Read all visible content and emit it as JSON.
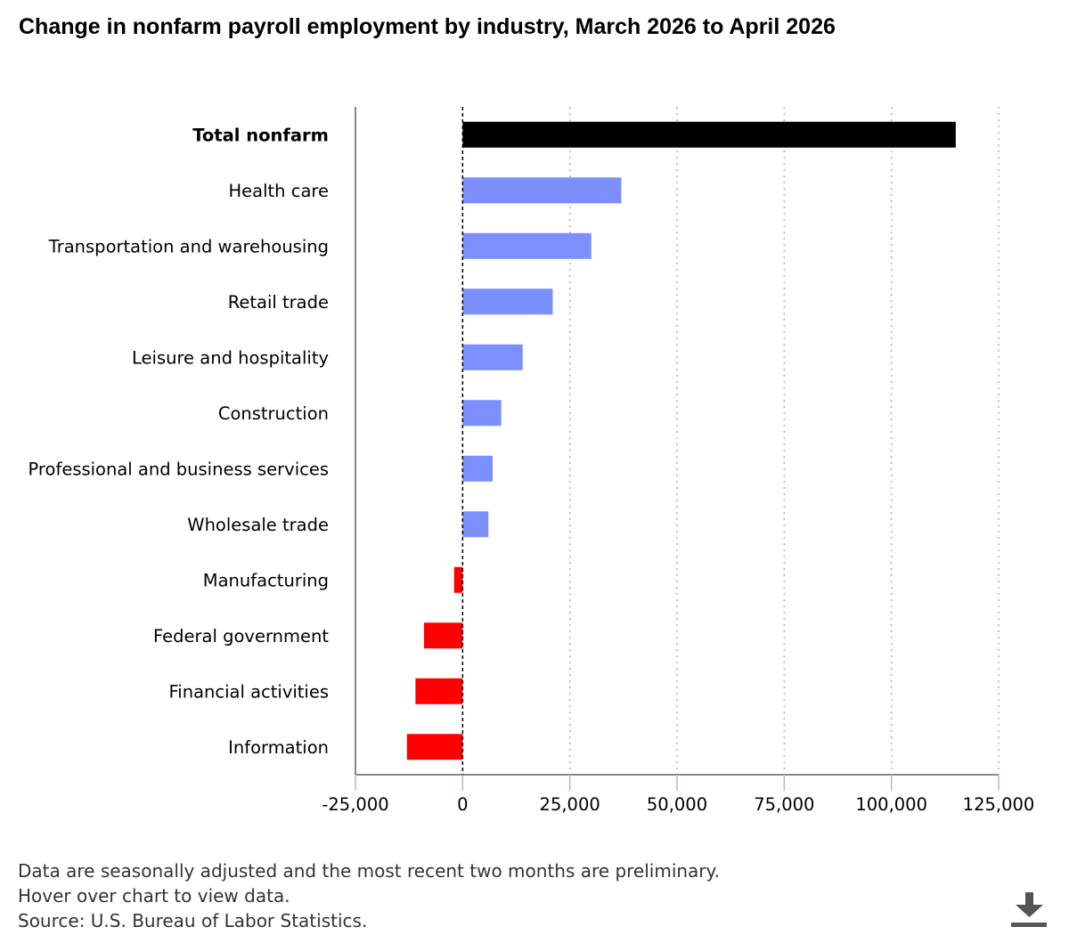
{
  "title": "Change in nonfarm payroll employment by industry, March 2026 to April 2026",
  "footnotes": [
    "Data are seasonally adjusted and the most recent two months are preliminary.",
    "Hover over chart to view data.",
    "Source: U.S. Bureau of Labor Statistics."
  ],
  "download": {
    "icon": "download-icon"
  },
  "colors": {
    "total": "#000000",
    "positive": "#7b8ffe",
    "negative": "#ff0000",
    "grid": "#b0b0b0",
    "axis": "#888888",
    "zero_line": "#000000"
  },
  "chart_data": {
    "type": "bar",
    "orientation": "horizontal",
    "categories": [
      "Total nonfarm",
      "Health care",
      "Transportation and warehousing",
      "Retail trade",
      "Leisure and hospitality",
      "Construction",
      "Professional and business services",
      "Wholesale trade",
      "Manufacturing",
      "Federal government",
      "Financial activities",
      "Information"
    ],
    "values": [
      115000,
      37000,
      30000,
      21000,
      14000,
      9000,
      7000,
      6000,
      -2000,
      -9000,
      -11000,
      -13000
    ],
    "xlim": [
      -25000,
      125000
    ],
    "xticks": [
      -25000,
      0,
      25000,
      50000,
      75000,
      100000,
      125000
    ],
    "xtick_labels": [
      "-25,000",
      "0",
      "25,000",
      "50,000",
      "75,000",
      "100,000",
      "125,000"
    ],
    "grid": "vertical dotted",
    "xlabel": "",
    "ylabel": ""
  }
}
